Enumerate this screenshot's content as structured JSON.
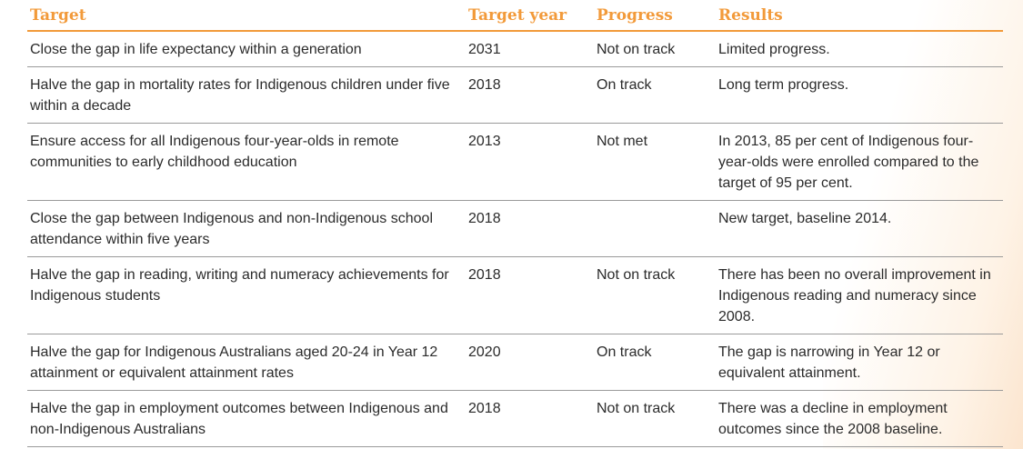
{
  "table": {
    "headers": {
      "target": "Target",
      "target_year": "Target year",
      "progress": "Progress",
      "results": "Results"
    },
    "rows": [
      {
        "target": "Close the gap in life expectancy within a generation",
        "year": "2031",
        "progress": "Not on track",
        "results": "Limited progress."
      },
      {
        "target": "Halve the gap in mortality rates for Indigenous children under five within a decade",
        "year": "2018",
        "progress": "On track",
        "results": "Long term progress."
      },
      {
        "target": "Ensure access for all Indigenous four-year-olds in remote communities to early childhood education",
        "year": "2013",
        "progress": "Not met",
        "results": "In 2013, 85 per cent of Indigenous four-year-olds were enrolled compared to the target of 95 per cent."
      },
      {
        "target": "Close the gap between Indigenous and non-Indigenous school attendance within five years",
        "year": "2018",
        "progress": "",
        "results": "New target, baseline 2014."
      },
      {
        "target": "Halve the gap in reading, writing and numeracy achievements for Indigenous students",
        "year": "2018",
        "progress": "Not on track",
        "results": "There has been no overall improvement in Indigenous reading and numeracy since 2008."
      },
      {
        "target": "Halve the gap for Indigenous Australians aged 20-24 in Year 12 attainment or equivalent attainment rates",
        "year": "2020",
        "progress": "On track",
        "results": "The gap is narrowing in Year 12 or equivalent attainment."
      },
      {
        "target": "Halve the gap in employment outcomes between Indigenous and non-Indigenous Australians",
        "year": "2018",
        "progress": "Not on track",
        "results": "There was a decline in employment outcomes since the 2008 baseline."
      }
    ]
  },
  "colors": {
    "accent": "#f29a3a",
    "text": "#2b2b2b",
    "rule": "#9a9a9a"
  }
}
